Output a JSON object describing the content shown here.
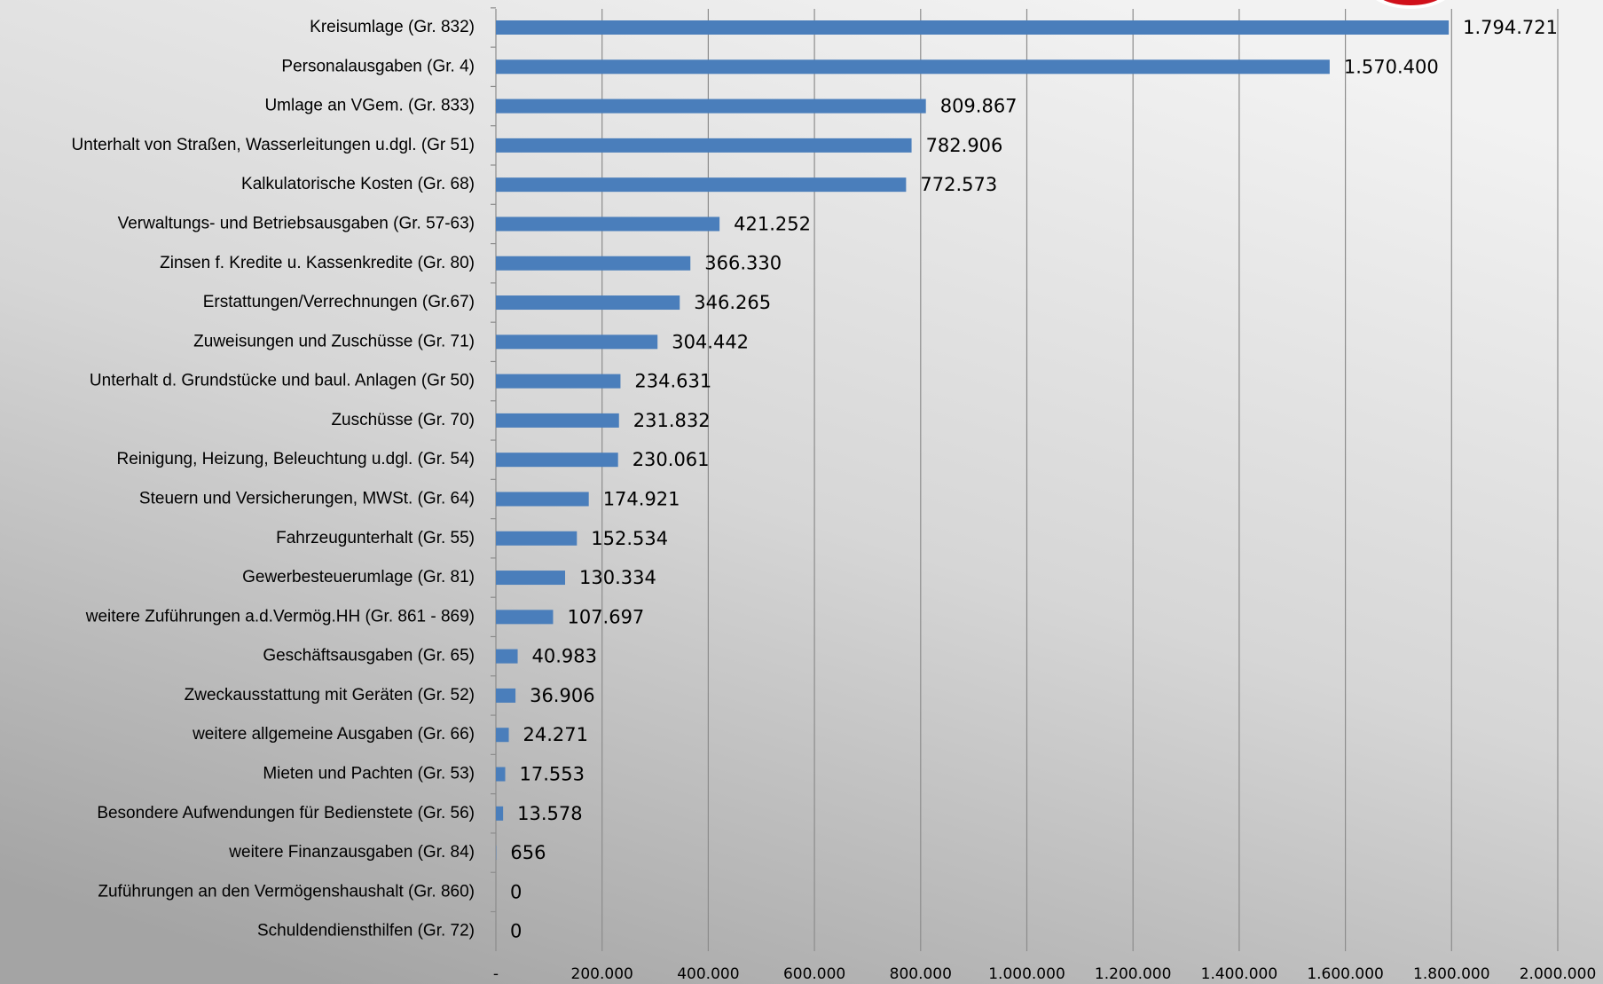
{
  "chart_data": {
    "type": "bar",
    "orientation": "horizontal",
    "color": "#4a7ebb",
    "grid": true,
    "categories": [
      "Kreisumlage (Gr. 832)",
      "Personalausgaben (Gr. 4)",
      "Umlage an VGem. (Gr. 833)",
      "Unterhalt von Straßen, Wasserleitungen u.dgl. (Gr 51)",
      "Kalkulatorische Kosten (Gr. 68)",
      "Verwaltungs- und Betriebsausgaben (Gr. 57-63)",
      "Zinsen f. Kredite u. Kassenkredite (Gr. 80)",
      "Erstattungen/Verrechnungen (Gr.67)",
      "Zuweisungen und Zuschüsse (Gr. 71)",
      "Unterhalt d. Grundstücke und baul. Anlagen (Gr 50)",
      "Zuschüsse (Gr. 70)",
      "Reinigung, Heizung, Beleuchtung u.dgl. (Gr. 54)",
      "Steuern und Versicherungen, MWSt. (Gr. 64)",
      "Fahrzeugunterhalt (Gr. 55)",
      "Gewerbesteuerumlage (Gr. 81)",
      "weitere Zuführungen a.d.Vermög.HH (Gr. 861 - 869)",
      "Geschäftsausgaben (Gr. 65)",
      "Zweckausstattung mit Geräten (Gr. 52)",
      "weitere allgemeine Ausgaben (Gr. 66)",
      "Mieten und Pachten (Gr. 53)",
      "Besondere Aufwendungen für Bedienstete (Gr. 56)",
      "weitere Finanzausgaben (Gr. 84)",
      "Zuführungen an den Vermögenshaushalt (Gr. 860)",
      "Schuldendiensthilfen (Gr. 72)"
    ],
    "values": [
      1794721,
      1570400,
      809867,
      782906,
      772573,
      421252,
      366330,
      346265,
      304442,
      234631,
      231832,
      230061,
      174921,
      152534,
      130334,
      107697,
      40983,
      36906,
      24271,
      17553,
      13578,
      656,
      0,
      0
    ],
    "value_labels": [
      "1.794.721",
      "1.570.400",
      "809.867",
      "782.906",
      "772.573",
      "421.252",
      "366.330",
      "346.265",
      "304.442",
      "234.631",
      "231.832",
      "230.061",
      "174.921",
      "152.534",
      "130.334",
      "107.697",
      "40.983",
      "36.906",
      "24.271",
      "17.553",
      "13.578",
      "656",
      "0",
      "0"
    ],
    "xlim": [
      0,
      2000000
    ],
    "xticks": [
      {
        "value": 0,
        "label": "-"
      },
      {
        "value": 200000,
        "label": "200.000"
      },
      {
        "value": 400000,
        "label": "400.000"
      },
      {
        "value": 600000,
        "label": "600.000"
      },
      {
        "value": 800000,
        "label": "800.000"
      },
      {
        "value": 1000000,
        "label": "1.000.000"
      },
      {
        "value": 1200000,
        "label": "1.200.000"
      },
      {
        "value": 1400000,
        "label": "1.400.000"
      },
      {
        "value": 1600000,
        "label": "1.600.000"
      },
      {
        "value": 1800000,
        "label": "1.800.000"
      },
      {
        "value": 2000000,
        "label": "2.000.000"
      }
    ]
  }
}
